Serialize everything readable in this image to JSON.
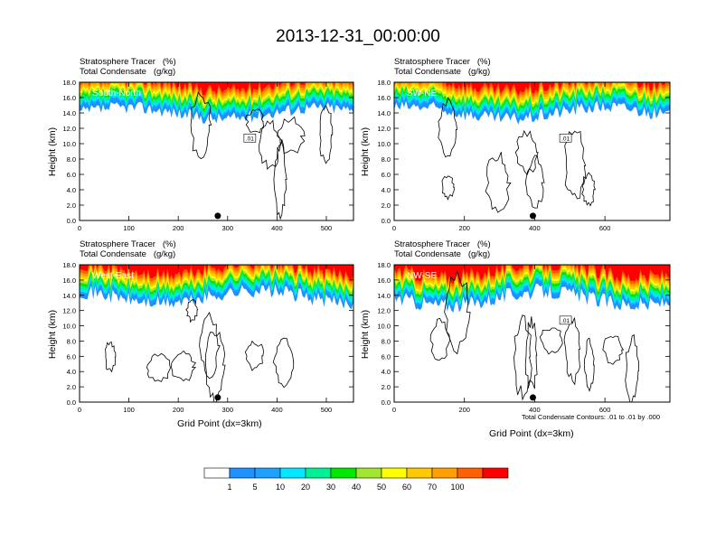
{
  "title": "2013-12-31_00:00:00",
  "colors": [
    "#ffffff",
    "#1e90ff",
    "#1ea0ff",
    "#00e8ff",
    "#00f096",
    "#00e800",
    "#a0e632",
    "#ffff00",
    "#ffc800",
    "#ffa000",
    "#ff6000",
    "#ff0000"
  ],
  "labelbar": {
    "labels": [
      "1",
      "5",
      "10",
      "20",
      "30",
      "40",
      "50",
      "60",
      "70",
      "100"
    ]
  },
  "contour_note": "Total Condensate Contours: .01 to .01 by .000",
  "chart_data": [
    {
      "type": "heatmap",
      "name": "South-North",
      "line1": "Stratosphere Tracer   (%)",
      "line2": "Total Condensate   (g/kg)",
      "ylabel": "Height (km)",
      "xlabel": "",
      "xlim": [
        0,
        555
      ],
      "ylim": [
        0,
        18
      ],
      "xticks": [
        "0",
        "100",
        "200",
        "300",
        "400",
        "500"
      ],
      "xtick_values": [
        0,
        100,
        200,
        300,
        400,
        500
      ],
      "yticks": [
        "0.0",
        "2.0",
        "4.0",
        "6.0",
        "8.0",
        "10.0",
        "12.0",
        "14.0",
        "16.0",
        "18.0"
      ],
      "contour_label": ".01",
      "marker_x": 280,
      "base_z": 14.0,
      "amp": 1.2
    },
    {
      "type": "heatmap",
      "name": "SW-NE",
      "line1": "Stratosphere Tracer   (%)",
      "line2": "Total Condensate   (g/kg)",
      "ylabel": "Height (km)",
      "xlabel": "",
      "xlim": [
        0,
        785
      ],
      "ylim": [
        0,
        18
      ],
      "xticks": [
        "0",
        "200",
        "400",
        "600"
      ],
      "xtick_values": [
        0,
        200,
        400,
        600
      ],
      "yticks": [
        "0.0",
        "2.0",
        "4.0",
        "6.0",
        "8.0",
        "10.0",
        "12.0",
        "14.0",
        "16.0",
        "18.0"
      ],
      "contour_label": ".01",
      "marker_x": 395,
      "base_z": 14.0,
      "amp": 1.3
    },
    {
      "type": "heatmap",
      "name": "West-East",
      "line1": "Stratosphere Tracer   (%)",
      "line2": "Total Condensate   (g/kg)",
      "ylabel": "Height (km)",
      "xlabel": "Grid Point (dx=3km)",
      "xlim": [
        0,
        555
      ],
      "ylim": [
        0,
        18
      ],
      "xticks": [
        "0",
        "100",
        "200",
        "300",
        "400",
        "500"
      ],
      "xtick_values": [
        0,
        100,
        200,
        300,
        400,
        500
      ],
      "yticks": [
        "0.0",
        "2.0",
        "4.0",
        "6.0",
        "8.0",
        "10.0",
        "12.0",
        "14.0",
        "16.0",
        "18.0"
      ],
      "contour_label": "",
      "marker_x": 280,
      "base_z": 13.8,
      "amp": 1.4
    },
    {
      "type": "heatmap",
      "name": "NW-SE",
      "line1": "Stratosphere Tracer   (%)",
      "line2": "Total Condensate   (g/kg)",
      "ylabel": "",
      "xlabel": "Grid Point (dx=3km)",
      "xlim": [
        0,
        785
      ],
      "ylim": [
        0,
        18
      ],
      "xticks": [
        "0",
        "200",
        "400",
        "600"
      ],
      "xtick_values": [
        0,
        200,
        400,
        600
      ],
      "yticks": [
        "0.0",
        "2.0",
        "4.0",
        "6.0",
        "8.0",
        "10.0",
        "12.0",
        "14.0",
        "16.0",
        "18.0"
      ],
      "contour_label": ".01",
      "marker_x": 395,
      "base_z": 13.6,
      "amp": 1.5
    }
  ]
}
